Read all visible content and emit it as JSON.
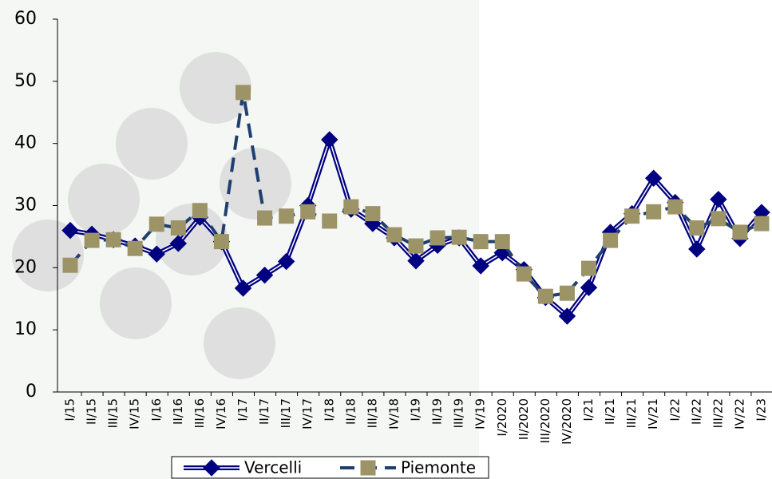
{
  "chart_data": {
    "type": "line",
    "categories": [
      "I/15",
      "II/15",
      "III/15",
      "IV/15",
      "I/16",
      "II/16",
      "III/16",
      "IV/16",
      "I/17",
      "II/17",
      "III/17",
      "IV/17",
      "I/18",
      "II/18",
      "III/18",
      "IV/18",
      "I/19",
      "II/19",
      "III/19",
      "IV/19",
      "I/2020",
      "II/2020",
      "III/2020",
      "IV/2020",
      "I/21",
      "II/21",
      "III/21",
      "IV/21",
      "I/22",
      "II/22",
      "III/22",
      "IV/22",
      "I/23"
    ],
    "series": [
      {
        "name": "Vercelli",
        "color": "#000080",
        "marker": "diamond",
        "dash": false,
        "values": [
          26.0,
          25.4,
          24.5,
          23.5,
          22.2,
          23.9,
          28.1,
          24.2,
          16.7,
          18.8,
          21.0,
          30.0,
          40.6,
          29.4,
          27.1,
          24.8,
          21.1,
          23.6,
          24.8,
          20.3,
          22.4,
          19.7,
          15.2,
          12.2,
          16.8,
          25.7,
          28.7,
          34.4,
          30.5,
          23.0,
          31.0,
          24.7,
          28.9
        ]
      },
      {
        "name": "Piemonte",
        "color": "#1f3f6f",
        "marker_color": "#9c9466",
        "marker": "square",
        "dash": true,
        "values": [
          20.4,
          24.4,
          24.5,
          23.1,
          27.0,
          26.4,
          29.2,
          24.2,
          48.2,
          28.0,
          28.3,
          29.0,
          27.5,
          29.8,
          28.7,
          25.3,
          23.5,
          24.8,
          24.9,
          24.2,
          24.2,
          19.0,
          15.4,
          15.9,
          19.9,
          24.4,
          28.3,
          29.0,
          29.8,
          26.4,
          27.9,
          25.7,
          27.1
        ]
      }
    ],
    "ylim": [
      0,
      60
    ],
    "yticks": [
      0,
      10,
      20,
      30,
      40,
      50,
      60
    ],
    "legend": "bottom"
  }
}
